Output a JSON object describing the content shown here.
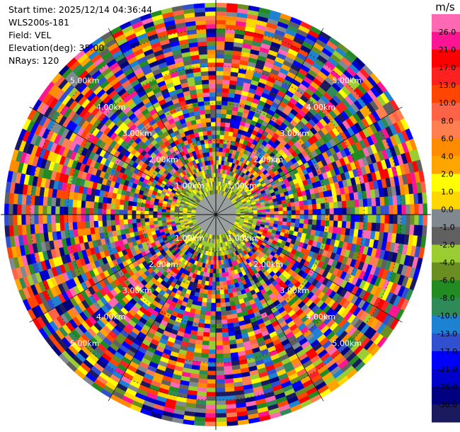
{
  "header": {
    "start_time": "Start time: 2025/12/14 04:36:44",
    "instrument": "WLS200s-181",
    "field": "Field: VEL",
    "elevation": "Elevation(deg): 35.00",
    "nrays": "NRays: 120"
  },
  "chart_data": {
    "type": "heatmap",
    "projection": "polar-ppi",
    "n_rays": 120,
    "elevation_deg": 35.0,
    "field": "VEL",
    "unit": "m/s",
    "range_rings_km": [
      1,
      2,
      3,
      4,
      5
    ],
    "range_ring_labels": [
      "1.00km",
      "2.00km",
      "3.00km",
      "4.00km",
      "5.00km"
    ],
    "max_range_km": 5.8,
    "clear_zone_km": 0.55,
    "colorbar": {
      "unit_label": "m/s",
      "ticks": [
        "-30.0",
        "-26.0",
        "-21.0",
        "-17.0",
        "-13.0",
        "-10.0",
        "-8.0",
        "-6.0",
        "-4.0",
        "-2.0",
        "-1.0",
        "0.0",
        "1.0",
        "2.0",
        "4.0",
        "6.0",
        "8.0",
        "10.0",
        "13.0",
        "17.0",
        "21.0",
        "26.0"
      ],
      "colors": [
        "#1a1a5e",
        "#000080",
        "#0000cd",
        "#0000ff",
        "#3050d0",
        "#1e82d2",
        "#2e8b57",
        "#228b22",
        "#6b8e23",
        "#9acd32",
        "#606060",
        "#808890",
        "#ffd700",
        "#ffff00",
        "#ffa500",
        "#ff8c00",
        "#ff7f50",
        "#ff6347",
        "#ff4500",
        "#ff2020",
        "#ff0000",
        "#ff1493",
        "#ff69b4"
      ]
    }
  }
}
